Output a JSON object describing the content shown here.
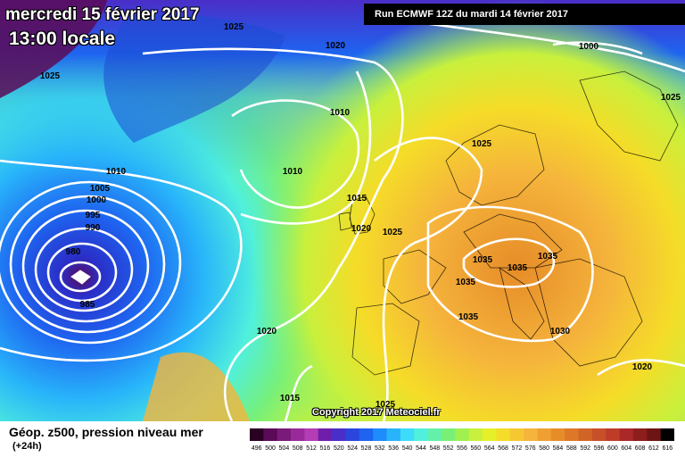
{
  "header": {
    "date": "mercredi 15 février 2017",
    "time": "13:00 locale",
    "run": "Run ECMWF 12Z du mardi 14 février 2017"
  },
  "copyright": "Copyright 2017 Meteociel.fr",
  "legend": {
    "title": "Géop. z500, pression niveau mer",
    "subtitle": "(+24h)",
    "scale_labels": [
      "496",
      "500",
      "504",
      "508",
      "512",
      "516",
      "520",
      "524",
      "528",
      "532",
      "536",
      "540",
      "544",
      "548",
      "552",
      "556",
      "560",
      "564",
      "568",
      "572",
      "576",
      "580",
      "584",
      "588",
      "592",
      "596",
      "600",
      "604",
      "608",
      "612",
      "616"
    ],
    "scale_colors": [
      "#2a0023",
      "#5a0a56",
      "#7a1a7a",
      "#9a2a9a",
      "#b43cb4",
      "#6e1eaa",
      "#4a2ec8",
      "#2a46dc",
      "#1e64f0",
      "#1e8cfa",
      "#28b4fa",
      "#3cdcfa",
      "#50f0dc",
      "#64f0aa",
      "#78f078",
      "#a0f050",
      "#c8f03c",
      "#e6f028",
      "#f5dc28",
      "#f5c832",
      "#f5b43c",
      "#f0a032",
      "#e68c28",
      "#dc7828",
      "#d26428",
      "#c85028",
      "#be3c28",
      "#aa2828",
      "#8c1e1e",
      "#6e1414",
      "#000000"
    ]
  },
  "isobars": [
    "1025",
    "1020",
    "1025",
    "1000",
    "1025",
    "1010",
    "1010",
    "1025",
    "1010",
    "1005",
    "1000",
    "995",
    "990",
    "980",
    "985",
    "1015",
    "1020",
    "1025",
    "1035",
    "1035",
    "1035",
    "1035",
    "1035",
    "1030",
    "1020",
    "1020",
    "1015",
    "1025"
  ]
}
